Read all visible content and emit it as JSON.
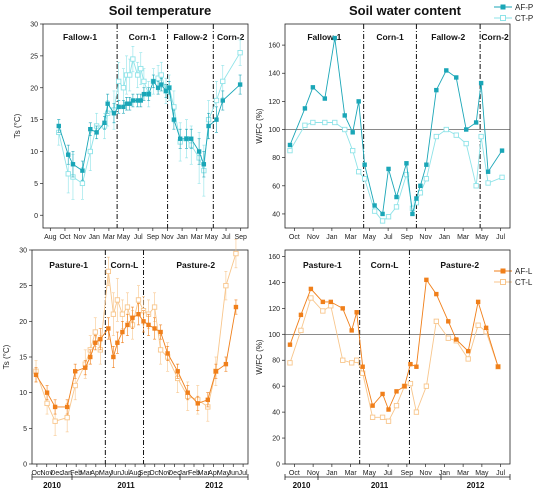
{
  "titles": {
    "left": "Soil temperature",
    "right": "Soil water content"
  },
  "legends": {
    "top": [
      {
        "label": "AF-P",
        "color": "#1aa6b7",
        "filled": true
      },
      {
        "label": "CT-P",
        "color": "#8ee3e8",
        "filled": false
      }
    ],
    "bottom": [
      {
        "label": "AF-L",
        "color": "#f07f1a",
        "filled": true
      },
      {
        "label": "CT-L",
        "color": "#f8c68c",
        "filled": false
      }
    ]
  },
  "years": [
    "2010",
    "2011",
    "2012"
  ],
  "chart_data": [
    {
      "id": "ts-top",
      "type": "line",
      "ylabel": "Ts (°C)",
      "ylim": [
        -2,
        30
      ],
      "yticks": [
        0,
        5,
        10,
        15,
        20,
        25,
        30
      ],
      "xticks": [
        "Aug",
        "Oct",
        "Nov",
        "Jan",
        "Mar",
        "May",
        "Jul",
        "Sep",
        "Nov",
        "Jan",
        "Mar",
        "May",
        "Jul",
        "Sep"
      ],
      "xlim": [
        0,
        13
      ],
      "dividers": [
        4.7,
        7.9,
        10.8
      ],
      "sections": [
        "Fallow-1",
        "Corn-1",
        "Fallow-2",
        "Corn-2"
      ],
      "series": [
        {
          "name": "AF-P",
          "color": "#1aa6b7",
          "filled": true,
          "x": [
            1.0,
            1.6,
            1.9,
            2.5,
            3.0,
            3.4,
            3.9,
            4.1,
            4.5,
            4.8,
            5.1,
            5.3,
            5.5,
            5.7,
            6.0,
            6.2,
            6.4,
            6.7,
            7.0,
            7.3,
            7.5,
            7.8,
            8.0,
            8.3,
            8.7,
            9.1,
            9.4,
            9.9,
            10.2,
            10.5,
            11.0,
            11.4,
            12.5
          ],
          "y": [
            14,
            9.5,
            8,
            7,
            13.5,
            13,
            14.5,
            17.5,
            16,
            17,
            17,
            17.5,
            17.5,
            18,
            18,
            18,
            19,
            19,
            21,
            20,
            20.5,
            19.5,
            20,
            15,
            12,
            12,
            12,
            10,
            8,
            14,
            15,
            18,
            20.5
          ],
          "err": [
            1,
            1.5,
            2,
            1.5,
            1,
            1,
            1,
            1.5,
            1.5,
            1,
            1,
            1,
            1,
            1,
            1,
            1,
            1,
            1,
            1,
            1,
            1,
            1,
            1,
            1.5,
            1.5,
            1.5,
            1.5,
            2,
            2,
            2,
            2,
            1.5,
            1.5
          ]
        },
        {
          "name": "CT-P",
          "color": "#8ee3e8",
          "filled": false,
          "x": [
            1.0,
            1.6,
            1.9,
            2.5,
            3.0,
            3.4,
            3.9,
            4.1,
            4.5,
            4.8,
            5.1,
            5.3,
            5.5,
            5.7,
            6.0,
            6.2,
            6.4,
            6.7,
            7.0,
            7.3,
            7.5,
            7.8,
            8.0,
            8.3,
            8.7,
            9.1,
            9.4,
            9.9,
            10.2,
            10.5,
            11.0,
            11.4,
            12.5
          ],
          "y": [
            13,
            6.5,
            6,
            5,
            10,
            14,
            14,
            16,
            16.5,
            21,
            20,
            22,
            22,
            24.5,
            22,
            23,
            21,
            19,
            21,
            21.5,
            22,
            19.5,
            20,
            17,
            11.5,
            12,
            11,
            9,
            7,
            15,
            18,
            21,
            25.5
          ],
          "err": [
            2,
            3,
            3.5,
            2.5,
            3,
            2,
            2,
            2,
            3,
            3,
            3,
            3,
            2.5,
            2,
            2,
            2.5,
            2,
            2,
            2,
            2,
            2,
            2,
            2,
            2.5,
            3,
            3,
            3,
            4,
            4,
            3,
            3,
            2.5,
            2
          ]
        }
      ]
    },
    {
      "id": "wfc-top",
      "type": "line",
      "ylabel": "W/FC (%)",
      "ylim": [
        30,
        175
      ],
      "yticks": [
        40,
        60,
        80,
        100,
        120,
        140,
        160
      ],
      "refline": 100,
      "xticks": [
        "Oct",
        "Nov",
        "Jan",
        "Mar",
        "May",
        "Jul",
        "Sep",
        "Nov",
        "Jan",
        "Mar",
        "May",
        "Jul"
      ],
      "xlim": [
        0,
        11.3
      ],
      "dividers": [
        3.95,
        6.6,
        9.8
      ],
      "sections": [
        "Fallow-1",
        "Corn-1",
        "Fallow-2",
        "Corn-2"
      ],
      "series": [
        {
          "name": "AF-P",
          "color": "#1aa6b7",
          "filled": true,
          "x": [
            0.25,
            1.0,
            1.4,
            2.0,
            2.5,
            3.0,
            3.4,
            3.7,
            4.0,
            4.5,
            4.9,
            5.2,
            5.6,
            6.1,
            6.4,
            6.6,
            6.8,
            7.1,
            7.6,
            8.1,
            8.6,
            9.1,
            9.6,
            9.85,
            10.2,
            10.9
          ],
          "y": [
            89,
            115,
            130,
            122,
            165,
            110,
            98,
            120,
            75,
            46,
            40,
            72,
            52,
            76,
            40,
            51,
            60,
            75,
            128,
            142,
            137,
            100,
            105,
            133,
            70,
            85
          ],
          "err": [
            0,
            0,
            0,
            0,
            0,
            0,
            0,
            0,
            0,
            0,
            0,
            0,
            0,
            0,
            0,
            0,
            0,
            0,
            0,
            0,
            0,
            0,
            0,
            0,
            0,
            0
          ]
        },
        {
          "name": "CT-P",
          "color": "#8ee3e8",
          "filled": false,
          "x": [
            0.25,
            1.0,
            1.4,
            2.0,
            2.5,
            3.0,
            3.4,
            3.7,
            4.0,
            4.5,
            4.9,
            5.2,
            5.6,
            6.1,
            6.4,
            6.6,
            6.8,
            7.1,
            7.6,
            8.1,
            8.6,
            9.1,
            9.6,
            9.85,
            10.2,
            10.9
          ],
          "y": [
            85,
            103,
            105,
            105,
            105,
            100,
            85,
            70,
            65,
            42,
            35,
            38,
            45,
            68,
            44,
            48,
            55,
            65,
            95,
            100,
            96,
            90,
            60,
            95,
            62,
            66
          ],
          "err": [
            0,
            0,
            0,
            0,
            0,
            0,
            0,
            0,
            0,
            0,
            0,
            0,
            0,
            0,
            0,
            0,
            0,
            0,
            0,
            0,
            0,
            0,
            0,
            0,
            0,
            0
          ]
        }
      ]
    },
    {
      "id": "ts-bottom",
      "type": "line",
      "ylabel": "Ts (°C)",
      "ylim": [
        0,
        30
      ],
      "yticks": [
        0,
        5,
        10,
        15,
        20,
        25,
        30
      ],
      "xticks": [
        "Oct",
        "Nov",
        "Dec",
        "Jan",
        "Feb",
        "Mar",
        "Apr",
        "May",
        "Jun",
        "Jul",
        "Aug",
        "Sep",
        "Oct",
        "Nov",
        "Dec",
        "Jan",
        "Feb",
        "Mar",
        "Apr",
        "May",
        "Jun",
        "Jul"
      ],
      "xlim": [
        0,
        21.5
      ],
      "dividers": [
        7.3,
        11.1
      ],
      "sections": [
        "Pasture-1",
        "Corn-L",
        "Pasture-2"
      ],
      "series": [
        {
          "name": "AF-L",
          "color": "#f07f1a",
          "filled": true,
          "x": [
            0.4,
            1.5,
            2.3,
            3.5,
            4.3,
            5.3,
            5.8,
            6.3,
            6.8,
            7.6,
            8.1,
            8.5,
            9.0,
            9.5,
            10.0,
            10.6,
            11.1,
            11.6,
            12.2,
            12.8,
            13.5,
            14.5,
            15.5,
            16.5,
            17.5,
            18.3,
            19.3,
            20.3
          ],
          "y": [
            12.5,
            10,
            8,
            8,
            13,
            13.5,
            15,
            17,
            17.5,
            19,
            15,
            17,
            18.5,
            19.5,
            20.5,
            21,
            20,
            19.5,
            19,
            18.5,
            15.5,
            13,
            10,
            8.5,
            9,
            13,
            14,
            22
          ],
          "err": [
            1,
            1,
            1,
            1,
            1,
            1,
            1,
            1,
            1.5,
            1.5,
            1.5,
            1.5,
            1.5,
            1.5,
            1.5,
            1.5,
            1.5,
            1.5,
            1.5,
            1,
            1,
            1,
            1,
            1,
            1,
            1,
            1,
            1
          ]
        },
        {
          "name": "CT-L",
          "color": "#f8c68c",
          "filled": false,
          "x": [
            0.4,
            1.5,
            2.3,
            3.5,
            4.3,
            5.3,
            5.8,
            6.3,
            6.8,
            7.6,
            8.1,
            8.5,
            9.0,
            9.5,
            10.0,
            10.6,
            11.1,
            11.6,
            12.2,
            12.8,
            13.5,
            14.5,
            15.5,
            16.5,
            17.5,
            18.3,
            19.3,
            20.3
          ],
          "y": [
            13,
            8.5,
            6,
            6.5,
            11,
            14,
            16,
            18.5,
            16,
            27,
            21,
            23,
            21,
            22,
            19.5,
            23,
            21.5,
            21,
            22,
            16,
            15,
            12,
            9.5,
            9,
            8,
            13,
            25,
            29.5
          ],
          "err": [
            1.5,
            1.5,
            2,
            2,
            2,
            2,
            2,
            2,
            2,
            2,
            3,
            3,
            2,
            2,
            2,
            2,
            2,
            2,
            2,
            2,
            2,
            2,
            2,
            2,
            2,
            2,
            2,
            2
          ]
        }
      ]
    },
    {
      "id": "wfc-bottom",
      "type": "line",
      "ylabel": "W/FC (%)",
      "ylim": [
        0,
        165
      ],
      "yticks": [
        0,
        20,
        40,
        60,
        80,
        100,
        120,
        140,
        160
      ],
      "refline": 100,
      "xticks": [
        "Oct",
        "Nov",
        "Jan",
        "Mar",
        "May",
        "Jul",
        "Sep",
        "Nov",
        "Jan",
        "Mar",
        "May",
        "Jul"
      ],
      "xlim": [
        0,
        11.3
      ],
      "dividers": [
        3.75,
        6.25
      ],
      "sections": [
        "Pasture-1",
        "Corn-L",
        "Pasture-2"
      ],
      "series": [
        {
          "name": "AF-L",
          "color": "#f07f1a",
          "filled": true,
          "x": [
            0.25,
            0.8,
            1.3,
            1.9,
            2.3,
            2.9,
            3.35,
            3.6,
            3.9,
            4.4,
            4.9,
            5.2,
            5.6,
            6.0,
            6.3,
            6.6,
            7.1,
            7.6,
            8.2,
            8.6,
            9.2,
            9.7,
            10.1,
            10.7
          ],
          "y": [
            92,
            115,
            135,
            125,
            125,
            120,
            103,
            117,
            75,
            45,
            54,
            42,
            56,
            60,
            77,
            75,
            142,
            131,
            110,
            96,
            87,
            125,
            105,
            75
          ],
          "err": [
            0,
            0,
            0,
            0,
            0,
            0,
            0,
            0,
            0,
            0,
            0,
            0,
            0,
            0,
            0,
            0,
            0,
            0,
            0,
            0,
            0,
            0,
            0,
            0
          ]
        },
        {
          "name": "CT-L",
          "color": "#f8c68c",
          "filled": false,
          "x": [
            0.25,
            0.8,
            1.3,
            1.9,
            2.3,
            2.9,
            3.35,
            3.6,
            3.9,
            4.4,
            4.9,
            5.2,
            5.6,
            6.0,
            6.3,
            6.6,
            7.1,
            7.6,
            8.2,
            8.6,
            9.2,
            9.7,
            10.1,
            10.7
          ],
          "y": [
            78,
            103,
            128,
            118,
            122,
            80,
            78,
            80,
            70,
            36,
            36,
            33,
            45,
            60,
            62,
            40,
            60,
            110,
            97,
            95,
            81,
            107,
            102,
            75
          ],
          "err": [
            0,
            0,
            0,
            0,
            0,
            0,
            0,
            0,
            0,
            0,
            0,
            0,
            0,
            0,
            0,
            0,
            0,
            0,
            0,
            0,
            0,
            0,
            0,
            0
          ]
        }
      ]
    }
  ]
}
